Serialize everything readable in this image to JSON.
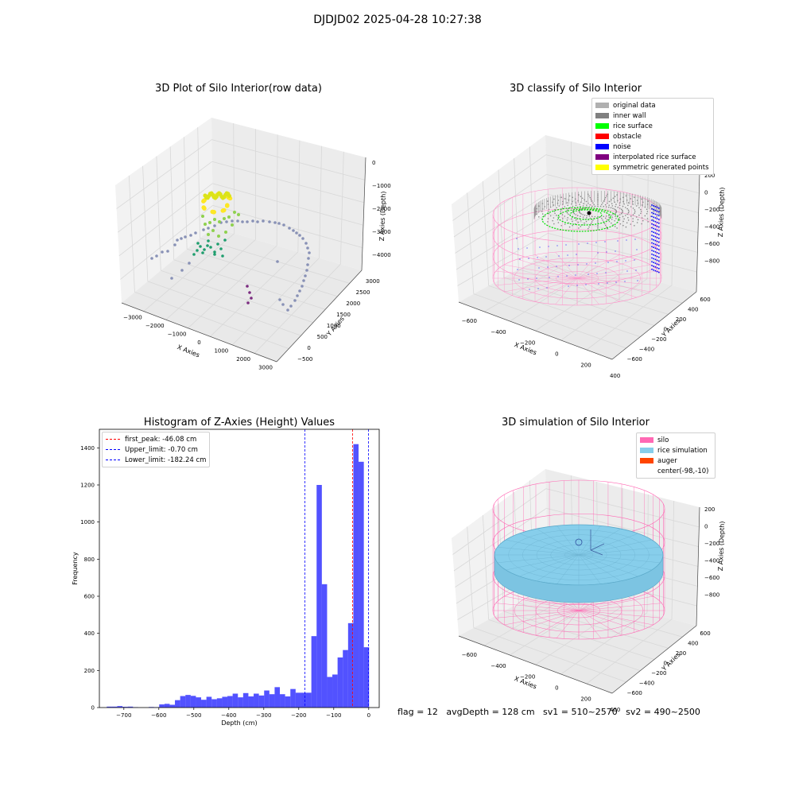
{
  "suptitle": "DJDJD02 2025-04-28 10:27:38",
  "plot1": {
    "title": "3D Plot of Silo Interior(row data)",
    "x_label": "X Axies",
    "y_label": "Y Axies",
    "z_label": "Z Axies (Depth)",
    "x_ticks": [
      "−3000",
      "−2000",
      "−1000",
      "0",
      "1000",
      "2000",
      "3000"
    ],
    "y_ticks": [
      "−500",
      "0",
      "500",
      "1000",
      "1500",
      "2000",
      "2500",
      "3000"
    ],
    "z_ticks": [
      "0",
      "−1000",
      "−2000",
      "−3000",
      "−4000"
    ]
  },
  "plot2": {
    "title": "3D classify of Silo Interior",
    "x_label": "X Axies",
    "y_label": "Y Axies",
    "z_label": "Z Axies (Depth)",
    "x_ticks": [
      "−600",
      "−400",
      "−200",
      "0",
      "200",
      "400"
    ],
    "y_ticks": [
      "−600",
      "−400",
      "−200",
      "0",
      "200",
      "400",
      "600"
    ],
    "z_ticks": [
      "200",
      "0",
      "−200",
      "−400",
      "−600",
      "−800"
    ],
    "legend": [
      {
        "label": "original data",
        "color": "#b0b0b0"
      },
      {
        "label": "inner wall",
        "color": "#808080"
      },
      {
        "label": "rice surface",
        "color": "#00ff00"
      },
      {
        "label": "obstacle",
        "color": "#ff0000"
      },
      {
        "label": "noise",
        "color": "#0000ff"
      },
      {
        "label": "interpolated rice surface",
        "color": "#800080"
      },
      {
        "label": "symmetric generated points",
        "color": "#ffff00"
      }
    ]
  },
  "plot3": {
    "title": "3D simulation of Silo Interior",
    "x_label": "X Axies",
    "y_label": "Y Axies",
    "z_label": "Z Axies (Depth)",
    "x_ticks": [
      "−600",
      "−400",
      "−200",
      "0",
      "200",
      "400"
    ],
    "y_ticks": [
      "−600",
      "−400",
      "−200",
      "0",
      "200",
      "400",
      "600"
    ],
    "z_ticks": [
      "200",
      "0",
      "−200",
      "−400",
      "−600",
      "−800"
    ],
    "legend": [
      {
        "label": "silo",
        "color": "#ff69b4"
      },
      {
        "label": "rice simulation",
        "color": "#87ceeb"
      },
      {
        "label": "auger",
        "color": "#ff4500"
      },
      {
        "label": "center(-98,-10)",
        "color": ""
      }
    ]
  },
  "chart_data": {
    "type": "bar",
    "title": "Histogram of Z-Axies (Height) Values",
    "xlabel": "Depth (cm)",
    "ylabel": "Frequency",
    "xlim": [
      -770,
      30
    ],
    "ylim": [
      0,
      1500
    ],
    "x_ticks": [
      -700,
      -600,
      -500,
      -400,
      -300,
      -200,
      -100,
      0
    ],
    "x_tick_labels": [
      "−700",
      "−600",
      "−500",
      "−400",
      "−300",
      "−200",
      "−100",
      "0"
    ],
    "y_ticks": [
      0,
      200,
      400,
      600,
      800,
      1000,
      1200,
      1400
    ],
    "bar_color": "#0000ff",
    "bins": [
      {
        "x0": -749,
        "x1": -734,
        "v": 5
      },
      {
        "x0": -734,
        "x1": -719,
        "v": 5
      },
      {
        "x0": -719,
        "x1": -704,
        "v": 8
      },
      {
        "x0": -704,
        "x1": -689,
        "v": 4
      },
      {
        "x0": -689,
        "x1": -674,
        "v": 5
      },
      {
        "x0": -674,
        "x1": -659,
        "v": 2
      },
      {
        "x0": -659,
        "x1": -644,
        "v": 0
      },
      {
        "x0": -644,
        "x1": -629,
        "v": 0
      },
      {
        "x0": -629,
        "x1": -614,
        "v": 3
      },
      {
        "x0": -614,
        "x1": -599,
        "v": 2
      },
      {
        "x0": -599,
        "x1": -584,
        "v": 17
      },
      {
        "x0": -584,
        "x1": -569,
        "v": 20
      },
      {
        "x0": -569,
        "x1": -554,
        "v": 15
      },
      {
        "x0": -554,
        "x1": -539,
        "v": 40
      },
      {
        "x0": -539,
        "x1": -524,
        "v": 62
      },
      {
        "x0": -524,
        "x1": -509,
        "v": 68
      },
      {
        "x0": -509,
        "x1": -494,
        "v": 63
      },
      {
        "x0": -494,
        "x1": -479,
        "v": 55
      },
      {
        "x0": -479,
        "x1": -464,
        "v": 42
      },
      {
        "x0": -464,
        "x1": -449,
        "v": 58
      },
      {
        "x0": -449,
        "x1": -434,
        "v": 45
      },
      {
        "x0": -434,
        "x1": -419,
        "v": 50
      },
      {
        "x0": -419,
        "x1": -404,
        "v": 58
      },
      {
        "x0": -404,
        "x1": -389,
        "v": 62
      },
      {
        "x0": -389,
        "x1": -374,
        "v": 75
      },
      {
        "x0": -374,
        "x1": -359,
        "v": 55
      },
      {
        "x0": -359,
        "x1": -344,
        "v": 78
      },
      {
        "x0": -344,
        "x1": -329,
        "v": 60
      },
      {
        "x0": -329,
        "x1": -314,
        "v": 75
      },
      {
        "x0": -314,
        "x1": -299,
        "v": 65
      },
      {
        "x0": -299,
        "x1": -284,
        "v": 92
      },
      {
        "x0": -284,
        "x1": -269,
        "v": 72
      },
      {
        "x0": -269,
        "x1": -254,
        "v": 110
      },
      {
        "x0": -254,
        "x1": -239,
        "v": 72
      },
      {
        "x0": -239,
        "x1": -224,
        "v": 60
      },
      {
        "x0": -224,
        "x1": -209,
        "v": 100
      },
      {
        "x0": -209,
        "x1": -194,
        "v": 80
      },
      {
        "x0": -194,
        "x1": -179,
        "v": 80
      },
      {
        "x0": -179,
        "x1": -164,
        "v": 80
      },
      {
        "x0": -164,
        "x1": -149,
        "v": 385
      },
      {
        "x0": -149,
        "x1": -134,
        "v": 1200
      },
      {
        "x0": -134,
        "x1": -119,
        "v": 665
      },
      {
        "x0": -119,
        "x1": -104,
        "v": 165
      },
      {
        "x0": -104,
        "x1": -89,
        "v": 178
      },
      {
        "x0": -89,
        "x1": -74,
        "v": 270
      },
      {
        "x0": -74,
        "x1": -59,
        "v": 310
      },
      {
        "x0": -59,
        "x1": -44,
        "v": 455
      },
      {
        "x0": -44,
        "x1": -29,
        "v": 1420
      },
      {
        "x0": -29,
        "x1": -14,
        "v": 1325
      },
      {
        "x0": -14,
        "x1": 1,
        "v": 325
      }
    ],
    "lines": [
      {
        "label": "first_peak: -46.08 cm",
        "x": -46.08,
        "color": "#ff0000"
      },
      {
        "label": "Upper_limit: -0.70 cm",
        "x": -0.7,
        "color": "#0000ff"
      },
      {
        "label": "Lower_limit: -182.24 cm",
        "x": -182.24,
        "color": "#0000ff"
      }
    ]
  },
  "footer": "flag = 12   avgDepth = 128 cm   sv1 = 510~2570   sv2 = 490~2500"
}
